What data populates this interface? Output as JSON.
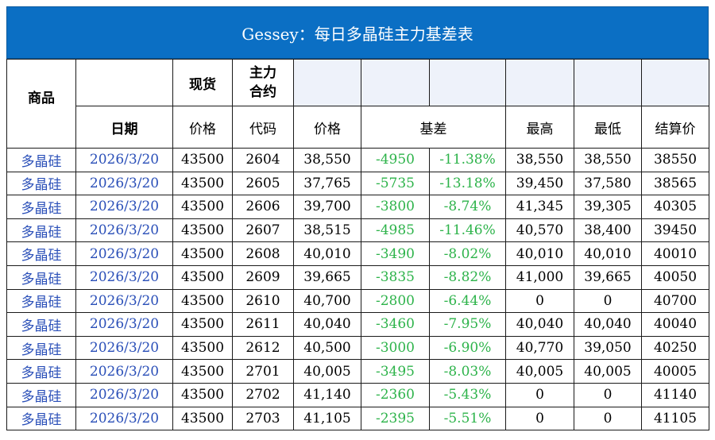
{
  "title": "Gessey：每日多晶硅主力基差表",
  "headers": {
    "product": "商品",
    "spot": "现货",
    "main_contract": "主力\n合约",
    "date": "日期",
    "spot_price": "价格",
    "contract_code": "代码",
    "contract_price": "价格",
    "basis": "基差",
    "high": "最高",
    "low": "最低",
    "settle": "结算价"
  },
  "rows": [
    {
      "product": "多晶硅",
      "date": "2026/3/20",
      "spot": "43500",
      "code": "2604",
      "price": "38,550",
      "basis": "-4950",
      "basis_pct": "-11.38%",
      "high": "38,550",
      "low": "38,550",
      "settle": "38550"
    },
    {
      "product": "多晶硅",
      "date": "2026/3/20",
      "spot": "43500",
      "code": "2605",
      "price": "37,765",
      "basis": "-5735",
      "basis_pct": "-13.18%",
      "high": "39,450",
      "low": "37,580",
      "settle": "38565"
    },
    {
      "product": "多晶硅",
      "date": "2026/3/20",
      "spot": "43500",
      "code": "2606",
      "price": "39,700",
      "basis": "-3800",
      "basis_pct": "-8.74%",
      "high": "41,345",
      "low": "39,305",
      "settle": "40305"
    },
    {
      "product": "多晶硅",
      "date": "2026/3/20",
      "spot": "43500",
      "code": "2607",
      "price": "38,515",
      "basis": "-4985",
      "basis_pct": "-11.46%",
      "high": "40,570",
      "low": "38,400",
      "settle": "39450"
    },
    {
      "product": "多晶硅",
      "date": "2026/3/20",
      "spot": "43500",
      "code": "2608",
      "price": "40,010",
      "basis": "-3490",
      "basis_pct": "-8.02%",
      "high": "40,010",
      "low": "40,010",
      "settle": "40010"
    },
    {
      "product": "多晶硅",
      "date": "2026/3/20",
      "spot": "43500",
      "code": "2609",
      "price": "39,665",
      "basis": "-3835",
      "basis_pct": "-8.82%",
      "high": "41,000",
      "low": "39,665",
      "settle": "40050"
    },
    {
      "product": "多晶硅",
      "date": "2026/3/20",
      "spot": "43500",
      "code": "2610",
      "price": "40,700",
      "basis": "-2800",
      "basis_pct": "-6.44%",
      "high": "0",
      "low": "0",
      "settle": "40700"
    },
    {
      "product": "多晶硅",
      "date": "2026/3/20",
      "spot": "43500",
      "code": "2611",
      "price": "40,040",
      "basis": "-3460",
      "basis_pct": "-7.95%",
      "high": "40,040",
      "low": "40,040",
      "settle": "40040"
    },
    {
      "product": "多晶硅",
      "date": "2026/3/20",
      "spot": "43500",
      "code": "2612",
      "price": "40,500",
      "basis": "-3000",
      "basis_pct": "-6.90%",
      "high": "40,770",
      "low": "39,050",
      "settle": "40250"
    },
    {
      "product": "多晶硅",
      "date": "2026/3/20",
      "spot": "43500",
      "code": "2701",
      "price": "40,005",
      "basis": "-3495",
      "basis_pct": "-8.03%",
      "high": "40,005",
      "low": "40,005",
      "settle": "40005"
    },
    {
      "product": "多晶硅",
      "date": "2026/3/20",
      "spot": "43500",
      "code": "2702",
      "price": "41,140",
      "basis": "-2360",
      "basis_pct": "-5.43%",
      "high": "0",
      "low": "0",
      "settle": "41140"
    },
    {
      "product": "多晶硅",
      "date": "2026/3/20",
      "spot": "43500",
      "code": "2703",
      "price": "41,105",
      "basis": "-2395",
      "basis_pct": "-5.51%",
      "high": "0",
      "low": "0",
      "settle": "41105"
    }
  ],
  "colors": {
    "title_bg": "#0b6fc4",
    "link_text": "#2a4fb8",
    "negative_basis": "#2db34a",
    "header_fill": "#eef2fa"
  }
}
